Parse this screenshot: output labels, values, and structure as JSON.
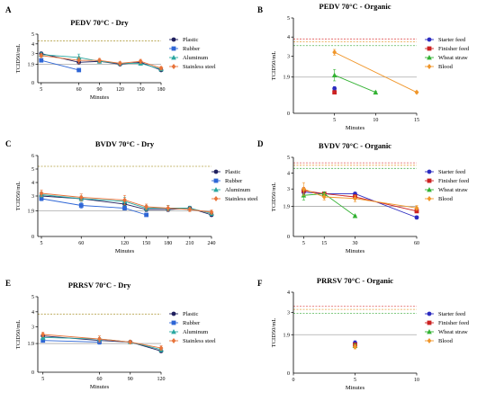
{
  "chart_data": [
    {
      "type": "line",
      "panel": "A",
      "title": "PEDV 70°C - Dry",
      "xlabel": "Minutes",
      "ylabel": "TCID50/mL",
      "xlim": [
        0,
        180
      ],
      "xticks": [
        5,
        60,
        90,
        120,
        150,
        180
      ],
      "ylim": [
        0,
        5
      ],
      "yticks": [
        {
          "v": 1.9,
          "label": "1.9"
        },
        {
          "v": 3,
          "label": "3"
        },
        {
          "v": 4,
          "label": "4"
        },
        {
          "v": 5,
          "label": "5"
        }
      ],
      "refs": [
        {
          "y": 4.3,
          "color": "#b5a24a"
        },
        {
          "y": 1.9,
          "color": "#aaaaaa"
        }
      ],
      "legend_position": "right",
      "series": [
        {
          "name": "Plastic",
          "color": "#1f1f5e",
          "marker": "circle",
          "x": [
            5,
            60,
            90,
            120,
            150,
            180
          ],
          "y": [
            3.0,
            2.1,
            2.2,
            1.9,
            2.1,
            1.3
          ],
          "err": [
            0.15,
            0.15,
            0.15,
            0.1,
            0.12,
            0.12
          ]
        },
        {
          "name": "Rubber",
          "color": "#2e66d6",
          "marker": "square",
          "x": [
            5,
            60
          ],
          "y": [
            2.3,
            1.3
          ],
          "err": [
            0.1,
            0.05
          ]
        },
        {
          "name": "Aluminum",
          "color": "#2aa7a0",
          "marker": "triangle",
          "x": [
            5,
            60,
            90,
            120,
            150,
            180
          ],
          "y": [
            2.9,
            2.6,
            2.2,
            2.0,
            2.0,
            1.4
          ],
          "err": [
            0.2,
            0.35,
            0.2,
            0.15,
            0.2,
            0.15
          ]
        },
        {
          "name": "Stainless steel",
          "color": "#e8733a",
          "marker": "diamond",
          "x": [
            5,
            60,
            90,
            120,
            150,
            180
          ],
          "y": [
            2.8,
            2.3,
            2.3,
            2.0,
            2.2,
            1.5
          ],
          "err": [
            0.2,
            0.3,
            0.2,
            0.15,
            0.2,
            0.15
          ]
        }
      ]
    },
    {
      "type": "line",
      "panel": "B",
      "title": "PEDV 70°C - Organic",
      "xlabel": "Minutes",
      "ylabel": "TCID50/mL",
      "xlim": [
        0,
        15
      ],
      "xticks": [
        5,
        10,
        15
      ],
      "ylim": [
        0,
        5
      ],
      "yticks": [
        {
          "v": 1.9,
          "label": "1.9"
        },
        {
          "v": 3,
          "label": "3"
        },
        {
          "v": 4,
          "label": "4"
        },
        {
          "v": 5,
          "label": "5"
        }
      ],
      "refs": [
        {
          "y": 3.9,
          "color": "#e05555"
        },
        {
          "y": 3.75,
          "color": "#e8a040"
        },
        {
          "y": 3.55,
          "color": "#55b555"
        },
        {
          "y": 1.9,
          "color": "#aaaaaa"
        }
      ],
      "legend_position": "right",
      "series": [
        {
          "name": "Starter feed",
          "color": "#2c2cc0",
          "marker": "circle",
          "x": [
            5
          ],
          "y": [
            1.3
          ],
          "err": [
            0.1
          ]
        },
        {
          "name": "Finisher feed",
          "color": "#cc2222",
          "marker": "square",
          "x": [
            5
          ],
          "y": [
            1.1
          ],
          "err": [
            0.05
          ]
        },
        {
          "name": "Wheat straw",
          "color": "#33b233",
          "marker": "triangle",
          "x": [
            5,
            10
          ],
          "y": [
            2.0,
            1.1
          ],
          "err": [
            0.3,
            0.05
          ]
        },
        {
          "name": "Blood",
          "color": "#f0962a",
          "marker": "diamond",
          "x": [
            5,
            15
          ],
          "y": [
            3.2,
            1.1
          ],
          "err": [
            0.15,
            0.05
          ]
        }
      ]
    },
    {
      "type": "line",
      "panel": "C",
      "title": "BVDV 70°C - Dry",
      "xlabel": "Minutes",
      "ylabel": "TCID50/mL",
      "xlim": [
        0,
        240
      ],
      "xticks": [
        5,
        60,
        120,
        150,
        180,
        210,
        240
      ],
      "ylim": [
        0,
        6
      ],
      "yticks": [
        {
          "v": 1.9,
          "label": "1.9"
        },
        {
          "v": 3,
          "label": "3"
        },
        {
          "v": 4,
          "label": "4"
        },
        {
          "v": 5,
          "label": "5"
        },
        {
          "v": 6,
          "label": "6"
        }
      ],
      "refs": [
        {
          "y": 5.2,
          "color": "#b5a24a"
        },
        {
          "y": 1.9,
          "color": "#aaaaaa"
        }
      ],
      "legend_position": "right",
      "series": [
        {
          "name": "Plastic",
          "color": "#1f1f5e",
          "marker": "circle",
          "x": [
            5,
            60,
            120,
            150,
            180,
            210,
            240
          ],
          "y": [
            3.0,
            2.8,
            2.4,
            2.0,
            2.0,
            2.1,
            1.6
          ],
          "err": [
            0.15,
            0.15,
            0.2,
            0.15,
            0.15,
            0.1,
            0.12
          ]
        },
        {
          "name": "Rubber",
          "color": "#2e66d6",
          "marker": "square",
          "x": [
            5,
            60,
            120,
            150
          ],
          "y": [
            2.8,
            2.3,
            2.1,
            1.6
          ],
          "err": [
            0.15,
            0.2,
            0.15,
            0.1
          ]
        },
        {
          "name": "Aluminum",
          "color": "#2aa7a0",
          "marker": "triangle",
          "x": [
            5,
            60,
            120,
            150,
            180,
            210,
            240
          ],
          "y": [
            3.1,
            2.8,
            2.6,
            2.1,
            2.1,
            2.1,
            1.7
          ],
          "err": [
            0.2,
            0.2,
            0.3,
            0.2,
            0.2,
            0.15,
            0.15
          ]
        },
        {
          "name": "Stainless steel",
          "color": "#e8733a",
          "marker": "diamond",
          "x": [
            5,
            60,
            120,
            150,
            180,
            210,
            240
          ],
          "y": [
            3.2,
            2.9,
            2.7,
            2.2,
            2.1,
            2.0,
            1.8
          ],
          "err": [
            0.25,
            0.25,
            0.35,
            0.2,
            0.2,
            0.15,
            0.15
          ]
        }
      ]
    },
    {
      "type": "line",
      "panel": "D",
      "title": "BVDV 70°C - Organic",
      "xlabel": "Minutes",
      "ylabel": "TCID50/mL",
      "xlim": [
        0,
        60
      ],
      "xticks": [
        5,
        15,
        30,
        60
      ],
      "ylim": [
        0,
        5
      ],
      "yticks": [
        {
          "v": 1.9,
          "label": "1.9"
        },
        {
          "v": 3,
          "label": "3"
        },
        {
          "v": 4,
          "label": "4"
        },
        {
          "v": 5,
          "label": "5"
        }
      ],
      "refs": [
        {
          "y": 4.65,
          "color": "#e05555"
        },
        {
          "y": 4.5,
          "color": "#e8a040"
        },
        {
          "y": 4.3,
          "color": "#55b555"
        },
        {
          "y": 1.9,
          "color": "#aaaaaa"
        }
      ],
      "legend_position": "right",
      "series": [
        {
          "name": "Starter feed",
          "color": "#2c2cc0",
          "marker": "circle",
          "x": [
            5,
            15,
            30,
            60
          ],
          "y": [
            2.8,
            2.7,
            2.7,
            1.2
          ],
          "err": [
            0.15,
            0.1,
            0.1,
            0.1
          ]
        },
        {
          "name": "Finisher feed",
          "color": "#cc2222",
          "marker": "square",
          "x": [
            5,
            15,
            30,
            60
          ],
          "y": [
            2.9,
            2.7,
            2.5,
            1.6
          ],
          "err": [
            0.2,
            0.1,
            0.15,
            0.1
          ]
        },
        {
          "name": "Wheat straw",
          "color": "#33b233",
          "marker": "triangle",
          "x": [
            5,
            15,
            30
          ],
          "y": [
            2.6,
            2.7,
            1.3
          ],
          "err": [
            0.3,
            0.1,
            0.05
          ]
        },
        {
          "name": "Blood",
          "color": "#f0962a",
          "marker": "diamond",
          "x": [
            5,
            15,
            30,
            60
          ],
          "y": [
            3.0,
            2.5,
            2.4,
            1.8
          ],
          "err": [
            0.4,
            0.2,
            0.2,
            0.15
          ]
        }
      ]
    },
    {
      "type": "line",
      "panel": "E",
      "title": "PRRSV 70°C - Dry",
      "xlabel": "Minutes",
      "ylabel": "TCID50/mL",
      "xlim": [
        0,
        120
      ],
      "xticks": [
        5,
        60,
        90,
        120
      ],
      "ylim": [
        0,
        5
      ],
      "yticks": [
        {
          "v": 1.9,
          "label": "1.9"
        },
        {
          "v": 3,
          "label": "3"
        },
        {
          "v": 4,
          "label": "4"
        },
        {
          "v": 5,
          "label": "5"
        }
      ],
      "refs": [
        {
          "y": 3.85,
          "color": "#b5a24a"
        },
        {
          "y": 1.9,
          "color": "#aaaaaa"
        }
      ],
      "legend_position": "right",
      "series": [
        {
          "name": "Plastic",
          "color": "#1f1f5e",
          "marker": "circle",
          "x": [
            5,
            60,
            90,
            120
          ],
          "y": [
            2.4,
            2.1,
            2.0,
            1.4
          ],
          "err": [
            0.1,
            0.1,
            0.1,
            0.1
          ]
        },
        {
          "name": "Rubber",
          "color": "#2e66d6",
          "marker": "square",
          "x": [
            5,
            60
          ],
          "y": [
            2.1,
            2.0
          ],
          "err": [
            0.1,
            0.15
          ]
        },
        {
          "name": "Aluminum",
          "color": "#2aa7a0",
          "marker": "triangle",
          "x": [
            5,
            60,
            90,
            120
          ],
          "y": [
            2.3,
            2.2,
            2.0,
            1.5
          ],
          "err": [
            0.15,
            0.1,
            0.1,
            0.15
          ]
        },
        {
          "name": "Stainless steel",
          "color": "#e8733a",
          "marker": "diamond",
          "x": [
            5,
            60,
            90,
            120
          ],
          "y": [
            2.5,
            2.2,
            2.0,
            1.6
          ],
          "err": [
            0.15,
            0.2,
            0.1,
            0.15
          ]
        }
      ]
    },
    {
      "type": "line",
      "panel": "F",
      "title": "PRRSV 70°C - Organic",
      "xlabel": "Minutes",
      "ylabel": "TCID50/mL",
      "xlim": [
        0,
        10
      ],
      "xticks": [
        0,
        5,
        10
      ],
      "ylim": [
        0,
        4
      ],
      "yticks": [
        {
          "v": 1.9,
          "label": "1.9"
        },
        {
          "v": 3,
          "label": "3"
        },
        {
          "v": 4,
          "label": "4"
        }
      ],
      "refs": [
        {
          "y": 3.3,
          "color": "#e05555"
        },
        {
          "y": 3.15,
          "color": "#e8a040"
        },
        {
          "y": 2.95,
          "color": "#55b555"
        },
        {
          "y": 1.9,
          "color": "#aaaaaa"
        }
      ],
      "legend_position": "right",
      "series": [
        {
          "name": "Starter feed",
          "color": "#2c2cc0",
          "marker": "circle",
          "x": [
            5
          ],
          "y": [
            1.5
          ],
          "err": [
            0.1
          ]
        },
        {
          "name": "Finisher feed",
          "color": "#cc2222",
          "marker": "square",
          "x": [
            5
          ],
          "y": [
            1.4
          ],
          "err": [
            0.1
          ]
        },
        {
          "name": "Wheat straw",
          "color": "#33b233",
          "marker": "triangle",
          "x": [
            5
          ],
          "y": [
            1.35
          ],
          "err": [
            0.1
          ]
        },
        {
          "name": "Blood",
          "color": "#f0962a",
          "marker": "diamond",
          "x": [
            5
          ],
          "y": [
            1.3
          ],
          "err": [
            0.1
          ]
        }
      ]
    }
  ]
}
